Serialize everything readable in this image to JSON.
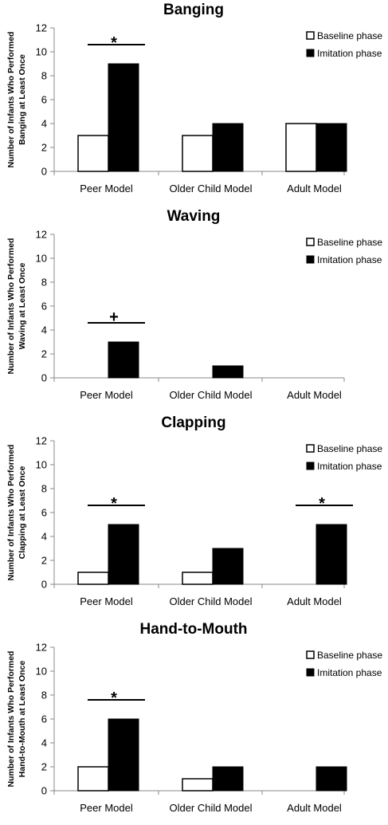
{
  "legend": {
    "baseline": "Baseline phase",
    "imitation": "Imitation phase"
  },
  "colors": {
    "baseline_fill": "#ffffff",
    "imitation_fill": "#000000",
    "axis": "#888888"
  },
  "chart_data": [
    {
      "type": "bar",
      "title": "Banging",
      "ylabel_lines": [
        "Number of Infants Who Performed",
        "Banging at Least Once"
      ],
      "categories": [
        "Peer Model",
        "Older Child Model",
        "Adult Model"
      ],
      "ylim": [
        0,
        12
      ],
      "yticks": [
        0,
        2,
        4,
        6,
        8,
        10,
        12
      ],
      "grid": false,
      "legend_position": "top-right",
      "series": [
        {
          "name": "Baseline phase",
          "values": [
            3,
            3,
            4
          ]
        },
        {
          "name": "Imitation phase",
          "values": [
            9,
            4,
            4
          ]
        }
      ],
      "annotations": [
        {
          "category": "Peer Model",
          "text": "*"
        }
      ]
    },
    {
      "type": "bar",
      "title": "Waving",
      "ylabel_lines": [
        "Number of Infants Who Performed",
        "Waving at Least Once"
      ],
      "categories": [
        "Peer Model",
        "Older Child Model",
        "Adult Model"
      ],
      "ylim": [
        0,
        12
      ],
      "yticks": [
        0,
        2,
        4,
        6,
        8,
        10,
        12
      ],
      "grid": false,
      "legend_position": "top-right",
      "series": [
        {
          "name": "Baseline phase",
          "values": [
            0,
            0,
            0
          ]
        },
        {
          "name": "Imitation phase",
          "values": [
            3,
            1,
            0
          ]
        }
      ],
      "annotations": [
        {
          "category": "Peer Model",
          "text": "+"
        }
      ]
    },
    {
      "type": "bar",
      "title": "Clapping",
      "ylabel_lines": [
        "Number of Infants Who Performed",
        "Clapping at Least Once"
      ],
      "categories": [
        "Peer Model",
        "Older Child Model",
        "Adult Model"
      ],
      "ylim": [
        0,
        12
      ],
      "yticks": [
        0,
        2,
        4,
        6,
        8,
        10,
        12
      ],
      "grid": false,
      "legend_position": "top-right",
      "series": [
        {
          "name": "Baseline phase",
          "values": [
            1,
            1,
            0
          ]
        },
        {
          "name": "Imitation phase",
          "values": [
            5,
            3,
            5
          ]
        }
      ],
      "annotations": [
        {
          "category": "Peer Model",
          "text": "*"
        },
        {
          "category": "Adult Model",
          "text": "*"
        }
      ]
    },
    {
      "type": "bar",
      "title": "Hand-to-Mouth",
      "ylabel_lines": [
        "Number of Infants Who Performed",
        "Hand-to-Mouth at Least Once"
      ],
      "categories": [
        "Peer Model",
        "Older Child Model",
        "Adult Model"
      ],
      "ylim": [
        0,
        12
      ],
      "yticks": [
        0,
        2,
        4,
        6,
        8,
        10,
        12
      ],
      "grid": false,
      "legend_position": "top-right",
      "series": [
        {
          "name": "Baseline phase",
          "values": [
            2,
            1,
            0
          ]
        },
        {
          "name": "Imitation phase",
          "values": [
            6,
            2,
            2
          ]
        }
      ],
      "annotations": [
        {
          "category": "Peer Model",
          "text": "*"
        }
      ]
    }
  ]
}
